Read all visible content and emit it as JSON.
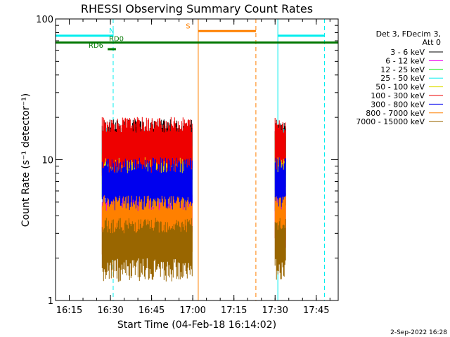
{
  "chart_data": {
    "type": "line",
    "title": "RHESSI Observing Summary Count Rates",
    "xlabel": "Start Time (04-Feb-18 16:14:02)",
    "ylabel": "Count Rate (s⁻¹ detector⁻¹)",
    "yscale": "log",
    "ylim": [
      1,
      100
    ],
    "xlim": [
      "16:10",
      "17:53"
    ],
    "x_ticks": [
      "16:15",
      "16:30",
      "16:45",
      "17:00",
      "17:15",
      "17:30",
      "17:45"
    ],
    "y_ticks": [
      "1",
      "10",
      "100"
    ],
    "grid": false,
    "legend_placement": "right",
    "legend_header": [
      "Det 3, FDecim 3,",
      "Att 0"
    ],
    "series": [
      {
        "name": "3 - 6 keV",
        "color": "#000000",
        "segments": [
          [
            "16:27",
            "17:00",
            12.5
          ],
          [
            "17:30",
            "17:34",
            12.5
          ]
        ]
      },
      {
        "name": "6 - 12 keV",
        "color": "#ee00ee",
        "segments": [
          [
            "16:27",
            "17:00",
            4.0
          ],
          [
            "17:30",
            "17:34",
            4.0
          ]
        ]
      },
      {
        "name": "12 - 25 keV",
        "color": "#00ee00",
        "segments": [
          [
            "16:27",
            "17:00",
            10.0
          ],
          [
            "17:30",
            "17:34",
            10.0
          ]
        ]
      },
      {
        "name": "25 - 50 keV",
        "color": "#00eeee",
        "segments": [
          [
            "16:27",
            "17:00",
            11.0
          ],
          [
            "17:30",
            "17:34",
            11.0
          ]
        ]
      },
      {
        "name": "50 - 100 keV",
        "color": "#dddd00",
        "segments": [
          [
            "16:27",
            "17:00",
            8.5
          ],
          [
            "17:30",
            "17:34",
            8.5
          ]
        ]
      },
      {
        "name": "100 - 300 keV",
        "color": "#ee0000",
        "segments": [
          [
            "16:27",
            "17:00",
            13.0
          ],
          [
            "17:30",
            "17:34",
            13.0
          ]
        ]
      },
      {
        "name": "300 - 800 keV",
        "color": "#0000ee",
        "segments": [
          [
            "16:27",
            "17:00",
            6.7
          ],
          [
            "17:30",
            "17:34",
            6.7
          ]
        ]
      },
      {
        "name": "800 - 7000 keV",
        "color": "#ff8000",
        "segments": [
          [
            "16:27",
            "17:00",
            3.6
          ],
          [
            "17:30",
            "17:34",
            3.6
          ]
        ]
      },
      {
        "name": "7000 - 15000 keV",
        "color": "#996600",
        "segments": [
          [
            "16:27",
            "17:00",
            2.5
          ],
          [
            "17:30",
            "17:34",
            2.5
          ]
        ]
      }
    ],
    "annotations": [
      {
        "label": "N",
        "color": "#00eeee",
        "kind": "night",
        "intervals": [
          [
            "16:10",
            "16:31"
          ],
          [
            "17:31",
            "17:48"
          ]
        ],
        "level": 76,
        "text_at": "16:31"
      },
      {
        "label": "S",
        "color": "#ff8000",
        "kind": "saa",
        "intervals": [
          [
            "17:02",
            "17:23"
          ]
        ],
        "level": 82,
        "text_at": "16:59"
      },
      {
        "label": "RD0",
        "color": "#007700",
        "kind": "decimation",
        "intervals": [
          [
            "16:10",
            "17:53"
          ]
        ],
        "level": 68,
        "text_at": "16:31"
      },
      {
        "label": "RD6",
        "color": "#007700",
        "kind": "decimation",
        "intervals": [
          [
            "16:29",
            "16:32"
          ]
        ],
        "level": 61,
        "text_at": "16:21"
      }
    ],
    "vlines": [
      {
        "x": "16:10",
        "color": "#00eeee",
        "style": "solid"
      },
      {
        "x": "16:31",
        "color": "#00eeee",
        "style": "dashed"
      },
      {
        "x": "17:02",
        "color": "#ff8000",
        "style": "solid"
      },
      {
        "x": "17:23",
        "color": "#ff8000",
        "style": "dashed"
      },
      {
        "x": "17:31",
        "color": "#00eeee",
        "style": "solid"
      },
      {
        "x": "17:48",
        "color": "#00eeee",
        "style": "dashed"
      }
    ],
    "footer_date": "2-Sep-2022 16:28"
  }
}
